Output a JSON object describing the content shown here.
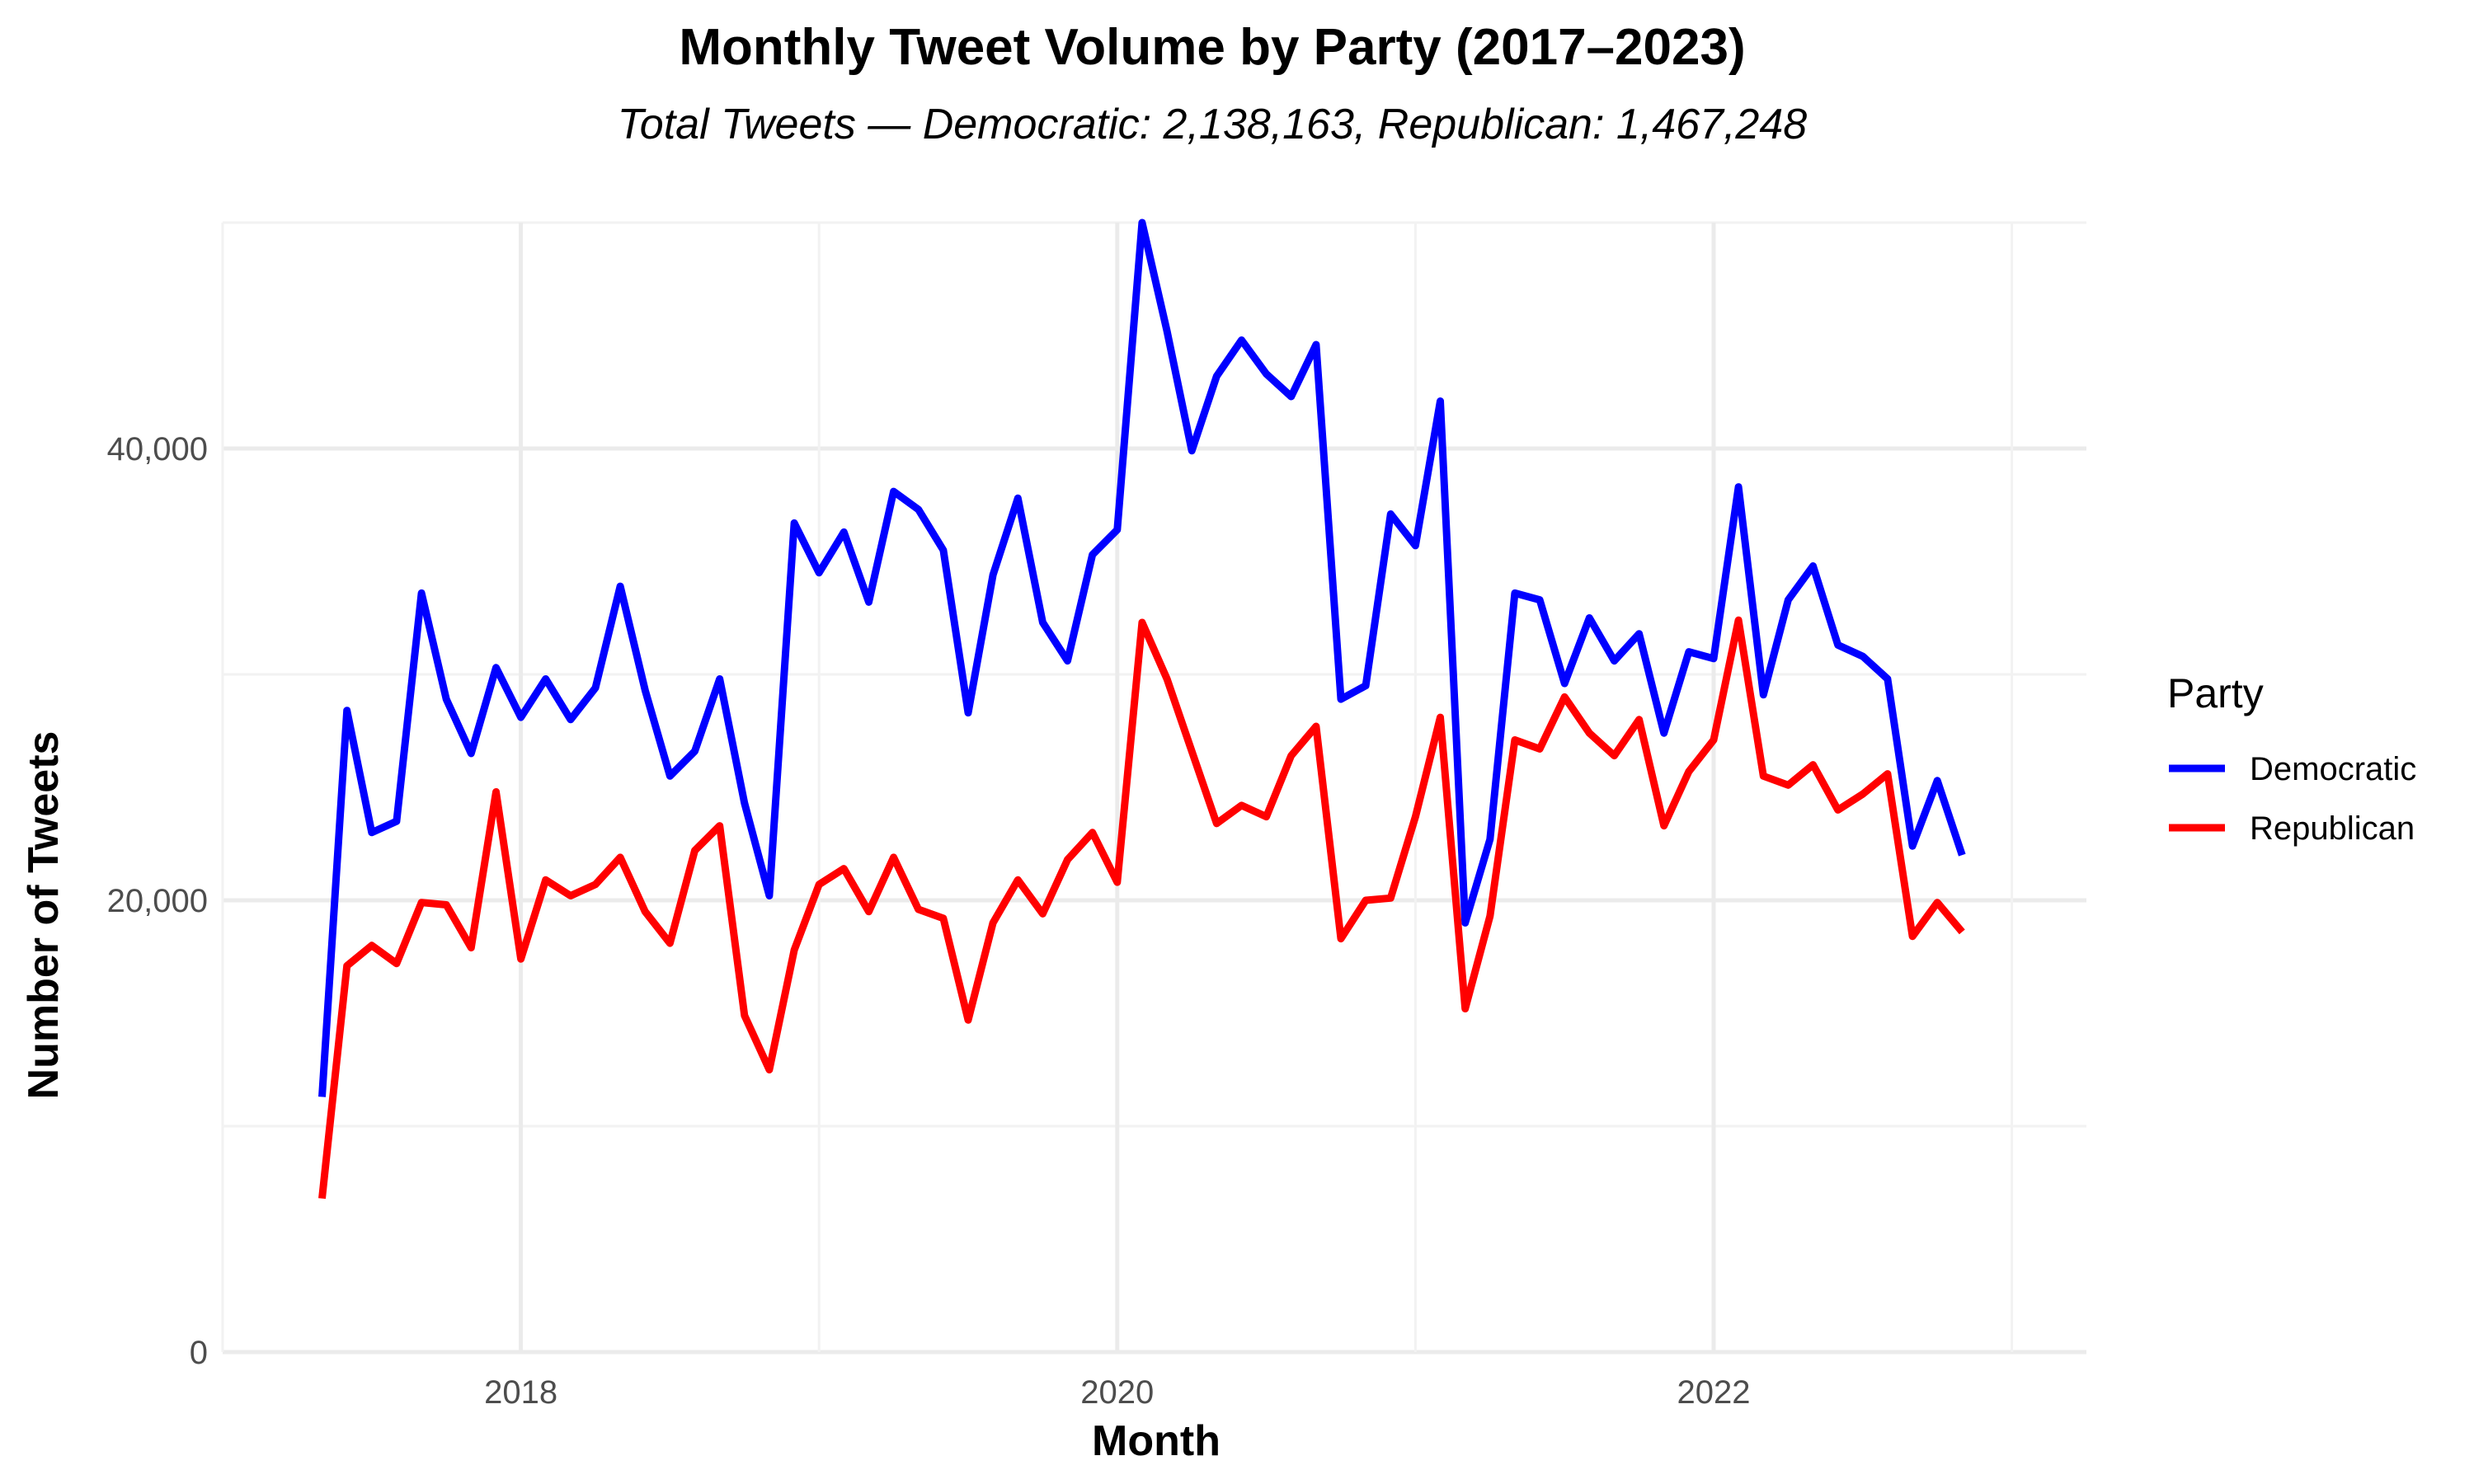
{
  "chart_data": {
    "type": "line",
    "title": "Monthly Tweet Volume by Party (2017–2023)",
    "subtitle": "Total Tweets — Democratic: 2,138,163, Republican: 1,467,248",
    "xlabel": "Month",
    "ylabel": "Number of Tweets",
    "x_start": "2017-05",
    "x_end": "2022-12",
    "xlim": [
      "2017-01",
      "2023-04"
    ],
    "x_ticks": [
      "2018",
      "2020",
      "2022"
    ],
    "x_tick_months": [
      "2018-01",
      "2020-01",
      "2022-01"
    ],
    "ylim": [
      0,
      50000
    ],
    "y_ticks": [
      0,
      20000,
      40000
    ],
    "y_tick_labels": [
      "0",
      "20,000",
      "40,000"
    ],
    "grid": true,
    "legend": {
      "title": "Party",
      "position": "right"
    },
    "series": [
      {
        "name": "Democratic",
        "color": "#0000ff",
        "values": [
          11300,
          28400,
          23000,
          23500,
          33600,
          28900,
          26500,
          30300,
          28100,
          29800,
          28000,
          29400,
          33900,
          29300,
          25500,
          26600,
          29800,
          24300,
          20200,
          36700,
          34500,
          36300,
          33200,
          38100,
          37300,
          35500,
          28300,
          34400,
          37800,
          32300,
          30600,
          35300,
          36400,
          50000,
          45200,
          39900,
          43200,
          44800,
          43300,
          42300,
          44600,
          28900,
          29500,
          37100,
          35700,
          42100,
          19000,
          22700,
          33600,
          33300,
          29600,
          32500,
          30600,
          31800,
          27400,
          31000,
          30700,
          38300,
          29100,
          33300,
          34800,
          31300,
          30800,
          29800,
          22400,
          25300,
          22000
        ]
      },
      {
        "name": "Republican",
        "color": "#ff0000",
        "values": [
          6800,
          17100,
          18000,
          17200,
          19900,
          19800,
          17900,
          24800,
          17400,
          20900,
          20200,
          20700,
          21900,
          19500,
          18100,
          22200,
          23300,
          14900,
          12500,
          17800,
          20700,
          21400,
          19500,
          21900,
          19600,
          19200,
          14700,
          19000,
          20900,
          19400,
          21800,
          23000,
          20800,
          32300,
          29800,
          26600,
          23400,
          24200,
          23700,
          26400,
          27700,
          18300,
          20000,
          20100,
          23700,
          28100,
          15200,
          19300,
          27100,
          26700,
          29000,
          27400,
          26400,
          28000,
          23300,
          25700,
          27100,
          32400,
          25500,
          25100,
          26000,
          24000,
          24700,
          25600,
          18400,
          19900,
          18600
        ]
      }
    ]
  }
}
